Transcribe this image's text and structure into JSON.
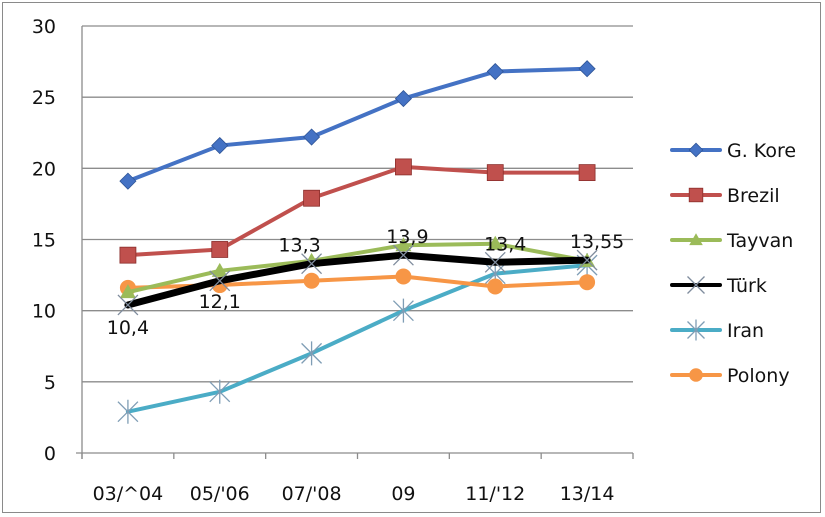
{
  "chart_data": {
    "type": "line",
    "title": "",
    "xlabel": "",
    "ylabel": "",
    "ylim": [
      0,
      30
    ],
    "yticks": [
      0,
      5,
      10,
      15,
      20,
      25,
      30
    ],
    "grid": true,
    "legend_position": "right",
    "categories": [
      "03/^04",
      "05/'06",
      "07/'08",
      "09",
      "11/'12",
      "13/14"
    ],
    "series": [
      {
        "name": "G. Kore",
        "color": "#4472c4",
        "marker": "diamond",
        "values": [
          19.1,
          21.6,
          22.2,
          24.9,
          26.8,
          27.0
        ]
      },
      {
        "name": "Brezil",
        "color": "#c0504d",
        "marker": "square",
        "values": [
          13.9,
          14.3,
          17.9,
          20.1,
          19.7,
          19.7
        ]
      },
      {
        "name": "Tayvan",
        "color": "#9bbb59",
        "marker": "triangle",
        "values": [
          11.3,
          12.8,
          13.5,
          14.6,
          14.7,
          13.5
        ]
      },
      {
        "name": "Türk",
        "color": "#000000",
        "marker": "x",
        "values": [
          10.4,
          12.1,
          13.3,
          13.9,
          13.4,
          13.55
        ]
      },
      {
        "name": "Iran",
        "color": "#4bacc6",
        "marker": "star",
        "values": [
          2.9,
          4.3,
          7.0,
          10.0,
          12.6,
          13.2
        ]
      },
      {
        "name": "Polony",
        "color": "#f79646",
        "marker": "circle",
        "values": [
          11.6,
          11.8,
          12.1,
          12.4,
          11.7,
          12.0
        ]
      }
    ],
    "annotations": [
      {
        "series": "Türk",
        "index": 0,
        "text": "10,4"
      },
      {
        "series": "Türk",
        "index": 1,
        "text": "12,1"
      },
      {
        "series": "Türk",
        "index": 2,
        "text": "13,3"
      },
      {
        "series": "Türk",
        "index": 3,
        "text": "13,9"
      },
      {
        "series": "Türk",
        "index": 4,
        "text": "13,4"
      },
      {
        "series": "Türk",
        "index": 5,
        "text": "13,55"
      }
    ]
  }
}
